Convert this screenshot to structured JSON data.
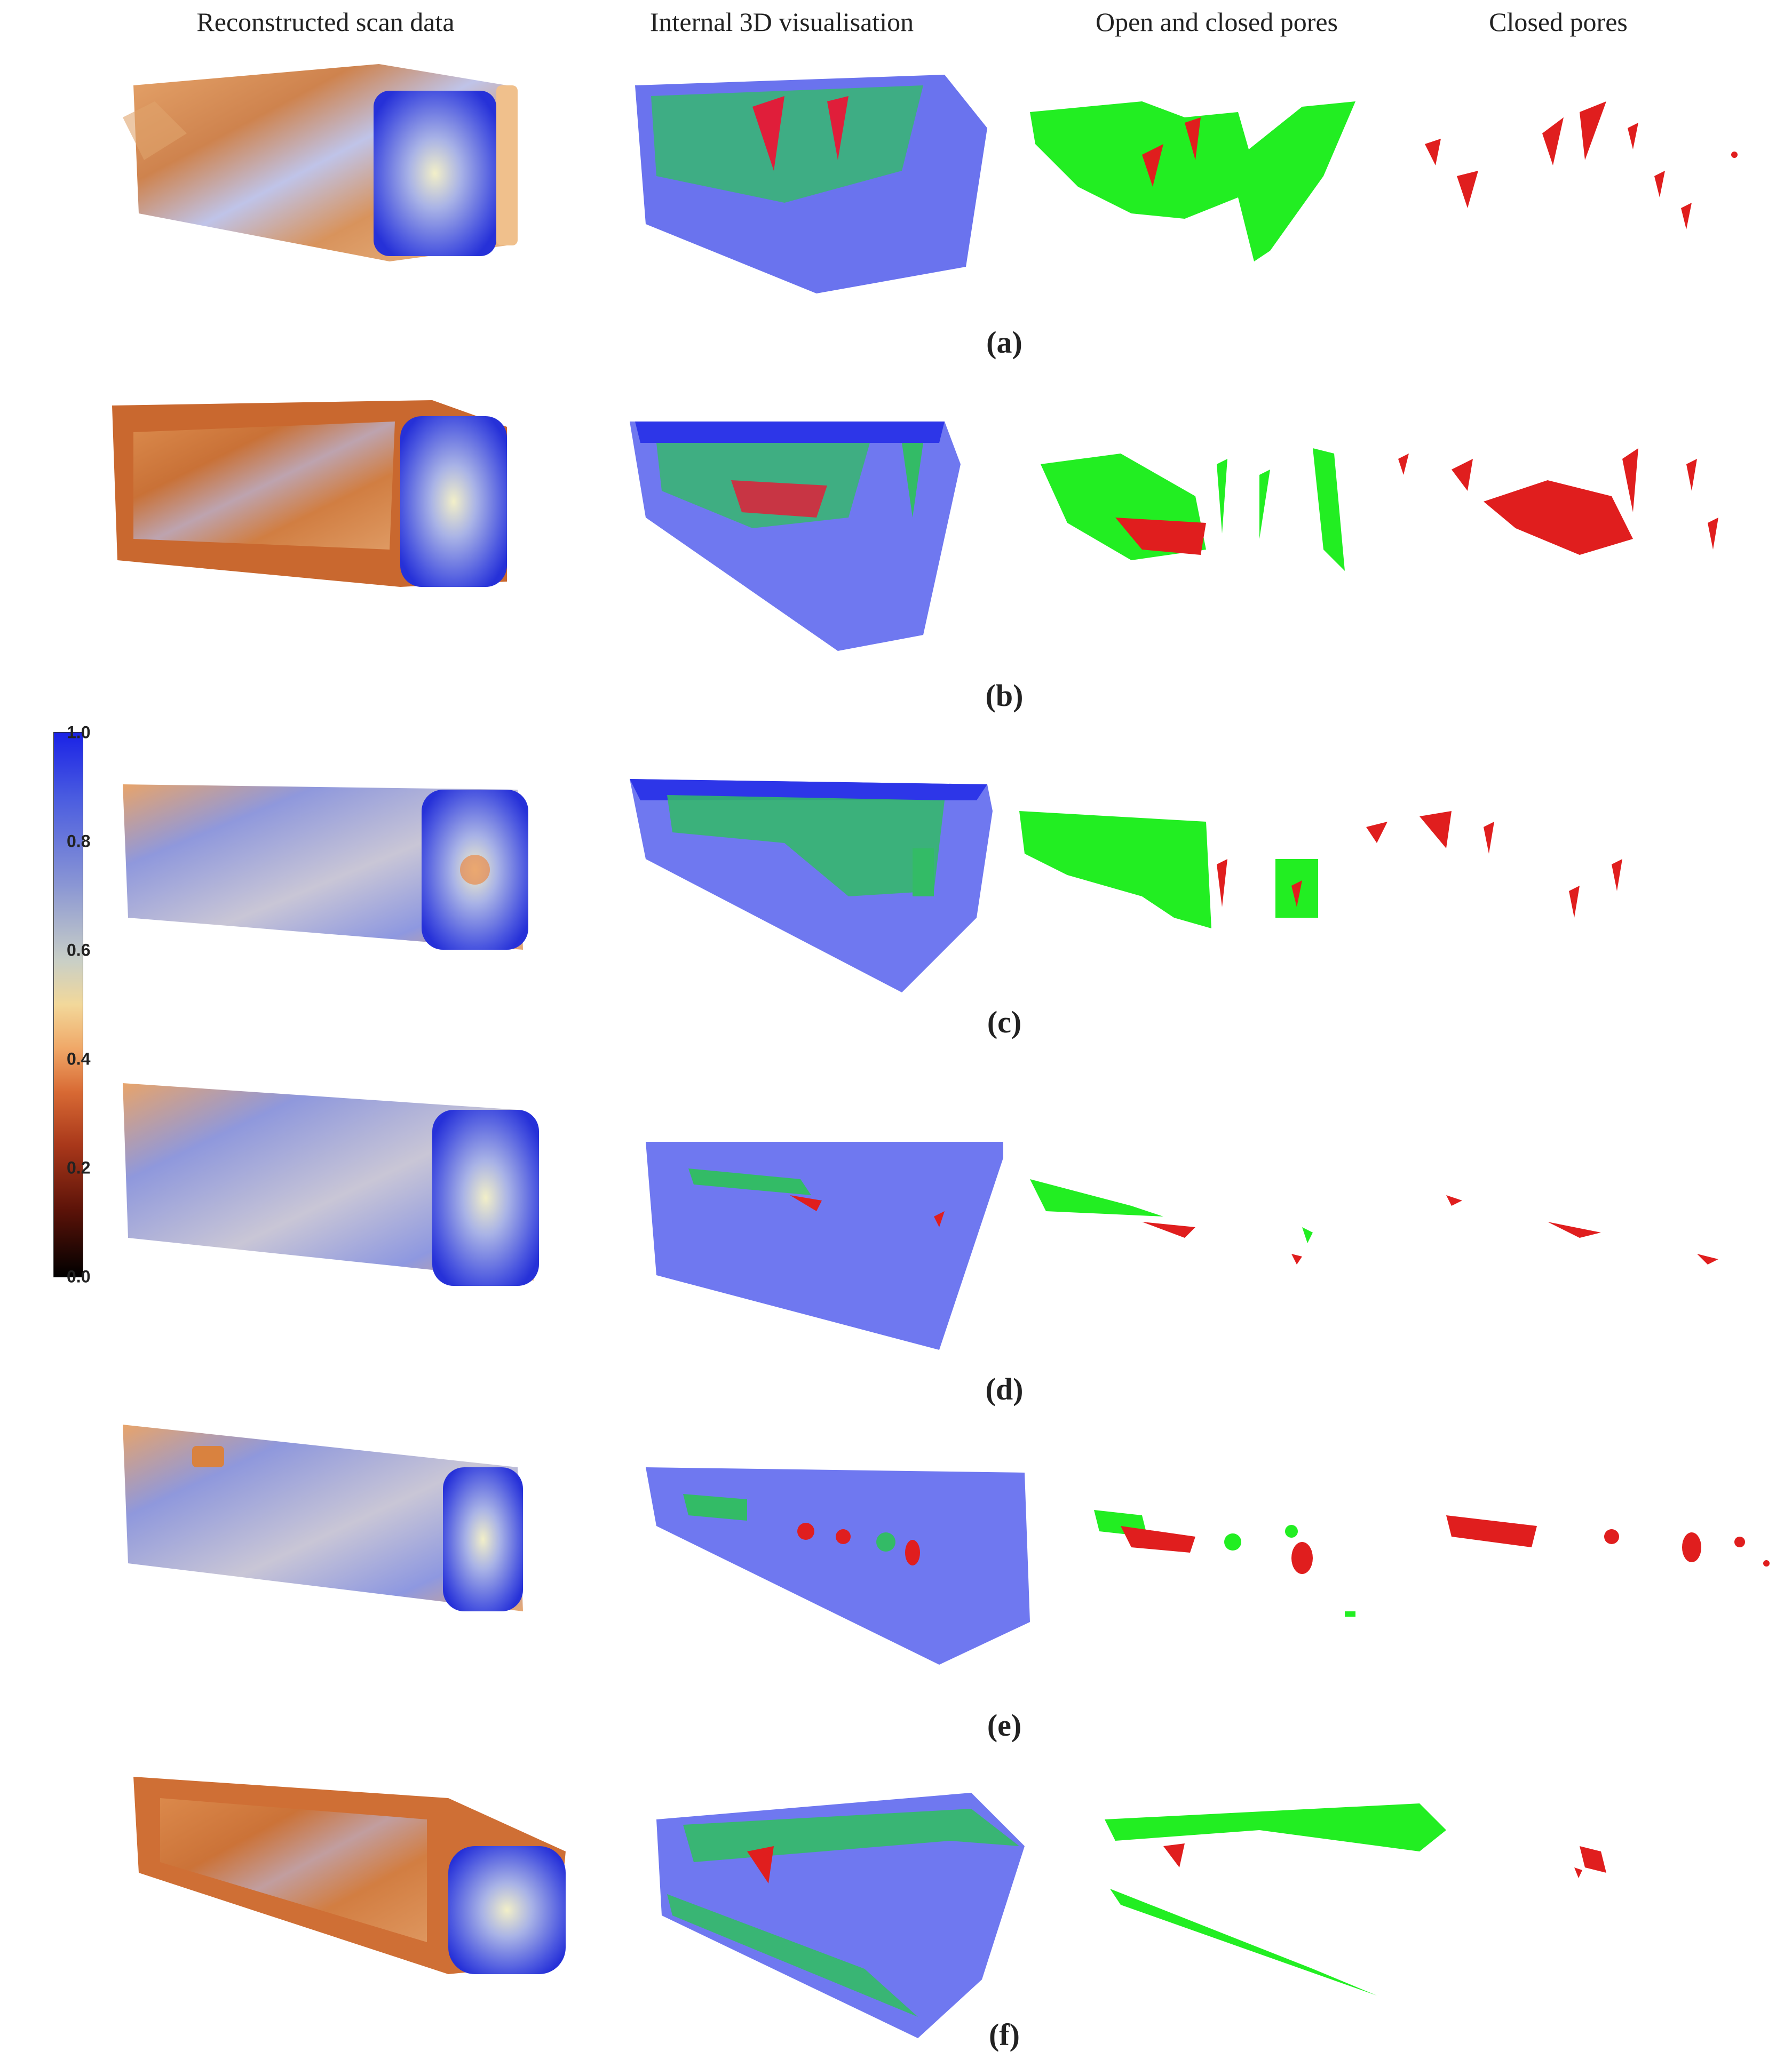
{
  "column_headers": [
    "Reconstructed scan data",
    "Internal 3D visualisation",
    "Open and closed pores",
    "Closed pores"
  ],
  "rows": [
    {
      "label": "(a)"
    },
    {
      "label": "(b)"
    },
    {
      "label": "(c)"
    },
    {
      "label": "(d)"
    },
    {
      "label": "(e)"
    },
    {
      "label": "(f)"
    }
  ],
  "colorbar": {
    "ticks": [
      "1.0",
      "0.8",
      "0.6",
      "0.4",
      "0.2",
      "0.0"
    ]
  },
  "colors": {
    "dense_blue": "#3b44e8",
    "shell_blue": "#6f78f0",
    "porous_orange": "#d9823f",
    "open_pore_green": "#22ee22",
    "closed_pore_red": "#ee1a1a"
  }
}
